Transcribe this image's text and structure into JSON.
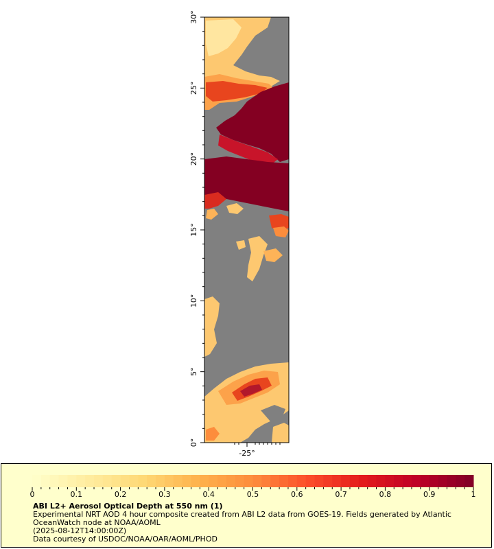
{
  "map": {
    "lat_ticks": [
      "0°",
      "5°",
      "10°",
      "15°",
      "20°",
      "25°",
      "30°"
    ],
    "lon_ticks": [
      "-25°"
    ],
    "lat_range": [
      0,
      30
    ],
    "colors": {
      "no_data": "#808080",
      "frame": "#000000",
      "background": "#ffffff"
    }
  },
  "legend": {
    "background": "#ffffcc",
    "colorbar": {
      "min": 0,
      "max": 1,
      "tick_labels": [
        "0",
        "0.1",
        "0.2",
        "0.3",
        "0.4",
        "0.5",
        "0.6",
        "0.7",
        "0.8",
        "0.9",
        "1"
      ],
      "colors": [
        "#ffffcc",
        "#ffeda0",
        "#fed976",
        "#feb24c",
        "#fd8d3c",
        "#fc4e2a",
        "#e31a1c",
        "#bd0026",
        "#800026"
      ]
    },
    "title": "ABI L2+ Aerosol Optical Depth at 550 nm (1)",
    "desc_line1": "Experimental NRT AOD 4 hour composite created from ABI L2 data from GOES-19. Fields generated by Atlantic",
    "desc_line2": "OceanWatch node at NOAA/AOML",
    "timestamp": "(2025-08-12T14:00:00Z)",
    "credit": "Data courtesy of USDOC/NOAA/OAR/AOML/PHOD"
  }
}
